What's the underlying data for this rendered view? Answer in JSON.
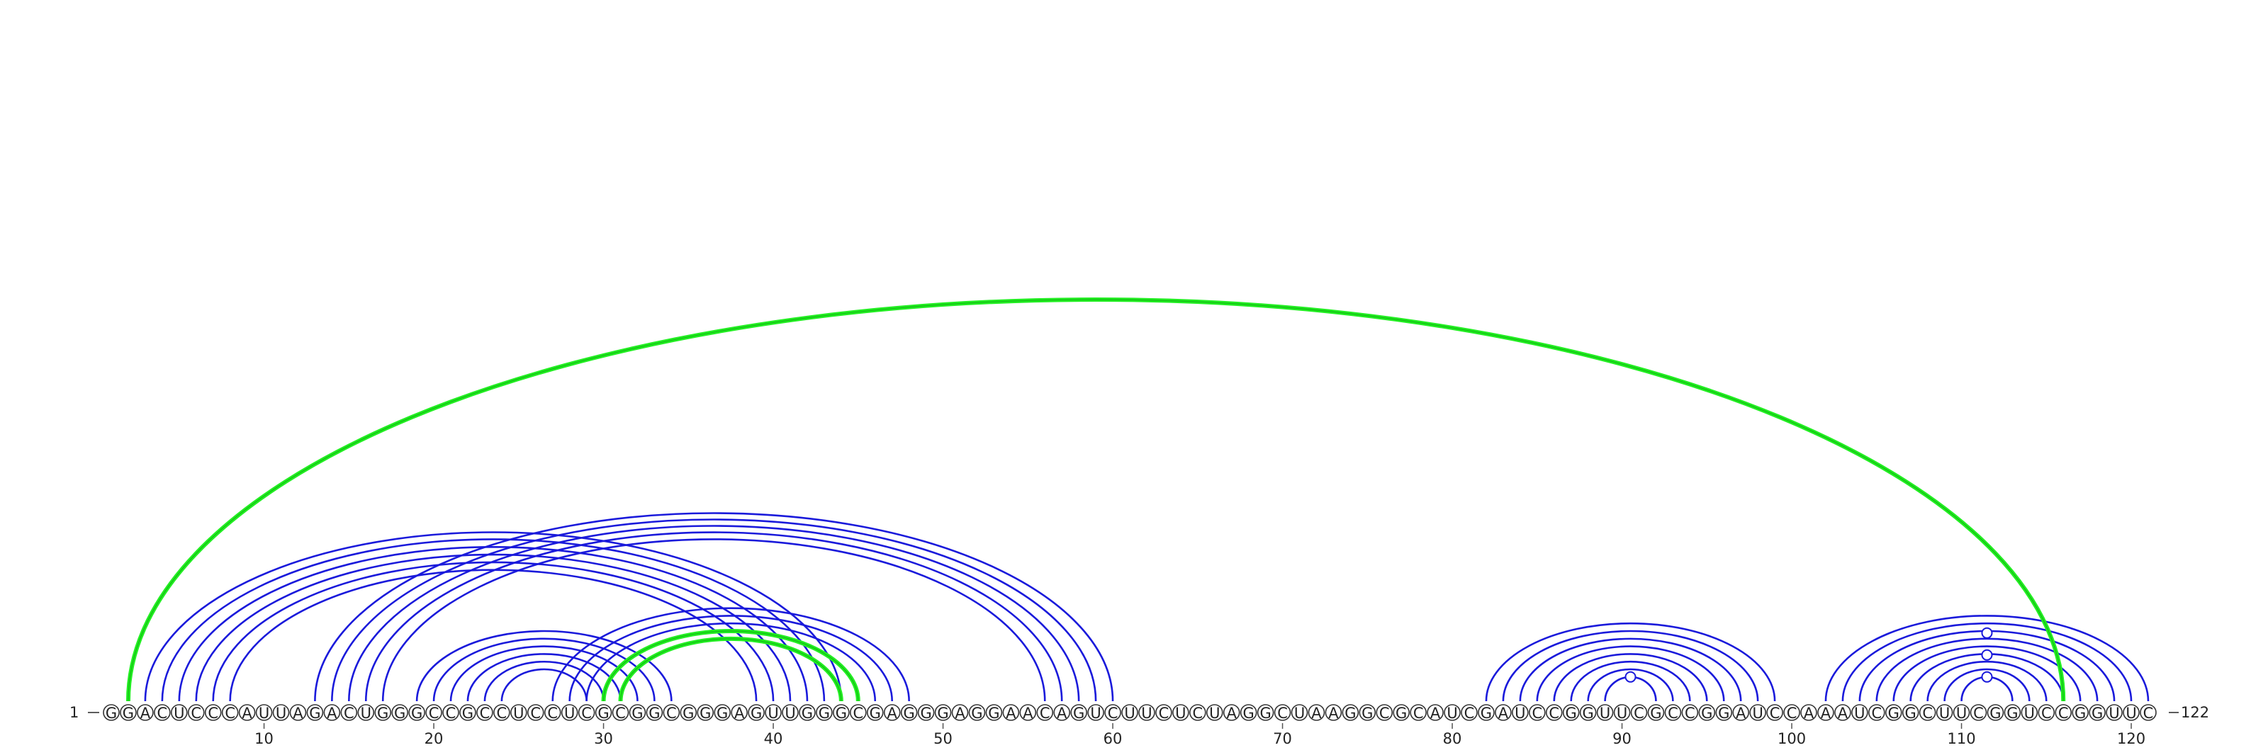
{
  "sequence": "GGACUCCCAUUAGACUGGGCCGCCUCCUCGCGGCGGGAGUUGGGCGAGGGAGGAACAGUCUUCUCUAGGCUAAGGCGCAUCGAUCCGGUUCGCCGGAUCCAAAUCGGCUUCGGUCCGGUUC",
  "length": 122,
  "start_label": "1",
  "end_label": "122",
  "tick_positions": [
    10,
    20,
    30,
    40,
    50,
    60,
    70,
    80,
    90,
    100,
    110,
    120
  ],
  "tick_labels": [
    "10",
    "20",
    "30",
    "40",
    "50",
    "60",
    "70",
    "80",
    "90",
    "100",
    "110",
    "120"
  ],
  "colors": {
    "helix_blue": "#1a1adb",
    "pseudoknot_green": "#22ee22",
    "circle_stroke": "#333333",
    "text": "#222222"
  },
  "helices": [
    {
      "kind": "blue",
      "pairs": [
        [
          3,
          44
        ],
        [
          4,
          43
        ],
        [
          5,
          42
        ],
        [
          6,
          41
        ],
        [
          7,
          40
        ],
        [
          8,
          39
        ]
      ]
    },
    {
      "kind": "blue",
      "pairs": [
        [
          13,
          60
        ],
        [
          14,
          59
        ],
        [
          15,
          58
        ],
        [
          16,
          57
        ],
        [
          17,
          56
        ]
      ]
    },
    {
      "kind": "blue",
      "pairs": [
        [
          19,
          34
        ],
        [
          20,
          33
        ],
        [
          21,
          32
        ],
        [
          22,
          31
        ],
        [
          23,
          30
        ],
        [
          24,
          29
        ]
      ]
    },
    {
      "kind": "blue",
      "pairs": [
        [
          27,
          48
        ],
        [
          28,
          47
        ],
        [
          29,
          46
        ],
        [
          30,
          45
        ]
      ]
    },
    {
      "kind": "blue",
      "pairs": [
        [
          82,
          99
        ],
        [
          83,
          98
        ],
        [
          84,
          97
        ],
        [
          85,
          96
        ],
        [
          86,
          95
        ],
        [
          87,
          94
        ],
        [
          88,
          93
        ],
        [
          89,
          92
        ]
      ]
    },
    {
      "kind": "blue",
      "pairs": [
        [
          102,
          121
        ],
        [
          103,
          120
        ],
        [
          104,
          119
        ],
        [
          105,
          118
        ],
        [
          106,
          117
        ],
        [
          107,
          116
        ],
        [
          108,
          115
        ],
        [
          109,
          114
        ],
        [
          110,
          113
        ]
      ]
    },
    {
      "kind": "green",
      "pairs": [
        [
          2,
          116
        ]
      ]
    },
    {
      "kind": "green",
      "pairs": [
        [
          30,
          45
        ],
        [
          31,
          44
        ]
      ]
    }
  ],
  "loop_markers": [
    {
      "kind": "blue",
      "i": 89,
      "j": 92,
      "level": 0
    },
    {
      "kind": "blue",
      "i": 110,
      "j": 113,
      "level": 0
    },
    {
      "kind": "blue",
      "i": 110,
      "j": 113,
      "level": 1
    },
    {
      "kind": "blue",
      "i": 110,
      "j": 113,
      "level": 2
    }
  ]
}
